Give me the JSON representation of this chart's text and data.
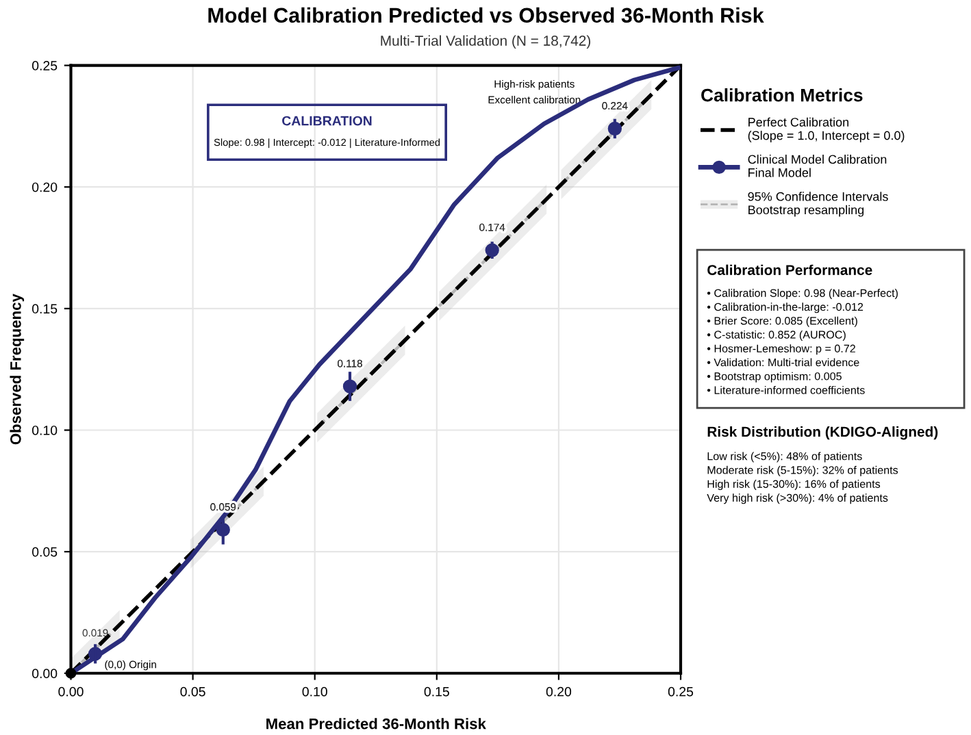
{
  "chart_data": {
    "type": "line",
    "title": "Model Calibration Predicted vs Observed 36-Month Risk",
    "subtitle": "Multi-Trial Validation (N = 18,742)",
    "xlabel": "Mean Predicted 36-Month Risk",
    "ylabel": "Observed Frequency",
    "legend_title": "Calibration Metrics",
    "xlim": [
      0,
      0.25
    ],
    "ylim": [
      0,
      0.25
    ],
    "xticks": [
      {
        "value": 0,
        "label": "0.00"
      },
      {
        "value": 0.05,
        "label": "0.05"
      },
      {
        "value": 0.1,
        "label": "0.10"
      },
      {
        "value": 0.15,
        "label": "0.15"
      },
      {
        "value": 0.2,
        "label": "0.20"
      },
      {
        "value": 0.25,
        "label": "0.25"
      }
    ],
    "yticks": [
      {
        "value": 0,
        "label": "0.00"
      },
      {
        "value": 0.05,
        "label": "0.05"
      },
      {
        "value": 0.1,
        "label": "0.10"
      },
      {
        "value": 0.15,
        "label": "0.15"
      },
      {
        "value": 0.2,
        "label": "0.20"
      },
      {
        "value": 0.25,
        "label": "0.25"
      }
    ],
    "grid": true,
    "legend": "right",
    "series": [
      {
        "name": "Perfect Calibration\n(Slope = 1.0, Intercept = 0.0)",
        "color": "#000000",
        "line_style": "dashed",
        "x": [
          0,
          0.25
        ],
        "values": [
          0,
          0.25
        ]
      },
      {
        "name": "Clinical Model Calibration\nFinal Model",
        "color": "#2b2d7c",
        "line_style": "solid",
        "x": [
          0,
          0.0213,
          0.0345,
          0.0494,
          0.0644,
          0.0757,
          0.0897,
          0.1019,
          0.1393,
          0.157,
          0.175,
          0.194,
          0.212,
          0.231,
          0.249
        ],
        "values": [
          0,
          0.0141,
          0.031,
          0.048,
          0.0668,
          0.0837,
          0.1119,
          0.127,
          0.1663,
          0.1926,
          0.212,
          0.226,
          0.236,
          0.244,
          0.249
        ]
      },
      {
        "name": "95% Confidence Intervals\nBootstrap resampling",
        "color": "#b5b5b5",
        "line_style": "dashed",
        "x": [
          0,
          0.02,
          null,
          0.049,
          0.079,
          null,
          0.101,
          0.137,
          null,
          0.151,
          0.195,
          null,
          0.201,
          0.238
        ],
        "values": [
          0,
          0.02,
          null,
          0.049,
          0.079,
          null,
          0.101,
          0.137,
          null,
          0.151,
          0.195,
          null,
          0.201,
          0.238
        ],
        "lower": [
          0,
          0.014,
          null,
          0.043,
          0.073,
          null,
          0.095,
          0.131,
          null,
          0.145,
          0.189,
          null,
          0.195,
          0.232
        ],
        "upper": [
          0.006,
          0.026,
          null,
          0.055,
          0.085,
          null,
          0.107,
          0.143,
          null,
          0.157,
          0.201,
          null,
          0.207,
          0.244
        ]
      },
      {
        "type": "scatter",
        "color": "#2b2d7c",
        "marker": "circle",
        "x": [
          0.01,
          0.0624,
          0.1144,
          0.1727,
          0.223
        ],
        "values": [
          0.008,
          0.059,
          0.118,
          0.174,
          0.224
        ],
        "errors": [
          0.004,
          0.006,
          0.006,
          0.0035,
          0.004
        ],
        "value_labels": [
          null,
          "0.059",
          "0.118",
          "0.174",
          "0.224"
        ]
      },
      {
        "type": "scatter",
        "color": "#000000",
        "marker": "circle",
        "x": [
          0
        ],
        "values": [
          0
        ]
      }
    ],
    "annotations": [
      "CALIBRATION",
      "Slope: 0.98 | Intercept: -0.012 | Literature-Informed",
      "High-risk patients\nExcellent calibration",
      "(0,0) Origin",
      "Calibration Performance",
      "• Calibration Slope: 0.98 (Near-Perfect)\n• Calibration-in-the-large: -0.012\n• Brier Score: 0.085 (Excellent)\n• C-statistic: 0.852 (AUROC)\n• Hosmer-Lemeshow: p = 0.72\n• Validation: Multi-trial evidence\n• Bootstrap optimism: 0.005\n• Literature-informed coefficients",
      "Risk Distribution (KDIGO-Aligned)",
      "Low risk (<5%): 48% of patients\nModerate risk (5-15%): 32% of patients\nHigh risk (15-30%): 16% of patients\nVery high risk (>30%): 4% of patients",
      {
        "text": "0.019",
        "x": 0.01,
        "y": 0.008
      }
    ]
  }
}
